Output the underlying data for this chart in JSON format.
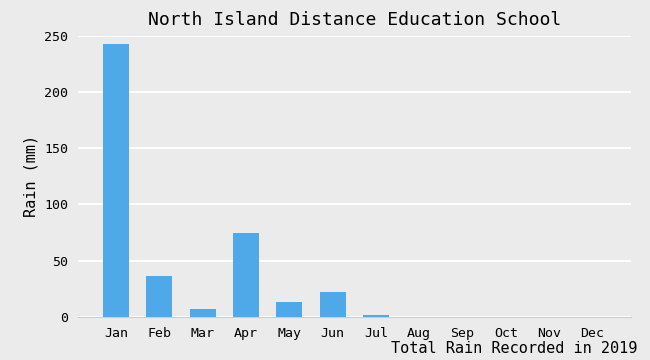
{
  "title": "North Island Distance Education School",
  "xlabel": "Total Rain Recorded in 2019",
  "ylabel": "Rain (mm)",
  "categories": [
    "Jan",
    "Feb",
    "Mar",
    "Apr",
    "May",
    "Jun",
    "Jul",
    "Aug",
    "Sep",
    "Oct",
    "Nov",
    "Dec"
  ],
  "values": [
    243,
    36,
    7,
    75,
    13,
    22,
    2,
    0,
    0,
    0,
    0,
    0
  ],
  "bar_color": "#4fa8e8",
  "ylim": [
    0,
    250
  ],
  "yticks": [
    0,
    50,
    100,
    150,
    200,
    250
  ],
  "background_color": "#ebebeb",
  "plot_bg_color": "#ebebeb",
  "grid_color": "#ffffff",
  "title_fontsize": 13,
  "label_fontsize": 11,
  "tick_fontsize": 9.5
}
